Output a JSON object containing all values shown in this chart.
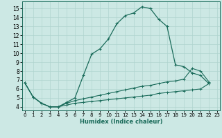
{
  "xlabel": "Humidex (Indice chaleur)",
  "background_color": "#cce8e4",
  "grid_color": "#b0d4cf",
  "line_color": "#1a6b5a",
  "xticks": [
    0,
    1,
    2,
    3,
    4,
    5,
    6,
    7,
    8,
    9,
    10,
    11,
    12,
    13,
    14,
    15,
    16,
    17,
    18,
    19,
    20,
    21,
    22,
    23
  ],
  "yticks": [
    4,
    5,
    6,
    7,
    8,
    9,
    10,
    11,
    12,
    13,
    14,
    15
  ],
  "xlim": [
    -0.3,
    23.3
  ],
  "ylim": [
    3.6,
    15.8
  ],
  "main_x": [
    0,
    1,
    2,
    3,
    4,
    5,
    6,
    7,
    8,
    9,
    10,
    11,
    12,
    13,
    14,
    15,
    16,
    17,
    18,
    19,
    20,
    21,
    22
  ],
  "main_y": [
    6.7,
    5.1,
    4.4,
    4.0,
    4.0,
    4.5,
    5.0,
    7.5,
    9.9,
    10.5,
    11.6,
    13.3,
    14.2,
    14.5,
    15.2,
    15.0,
    13.8,
    13.0,
    8.7,
    8.5,
    7.8,
    7.5,
    6.6
  ],
  "upper_x": [
    0,
    1,
    2,
    3,
    4,
    5,
    6,
    7,
    8,
    9,
    10,
    11,
    12,
    13,
    14,
    15,
    16,
    17,
    18,
    19,
    20,
    21,
    22
  ],
  "upper_y": [
    6.7,
    5.1,
    4.4,
    4.0,
    4.0,
    4.4,
    4.7,
    4.9,
    5.1,
    5.3,
    5.5,
    5.7,
    5.9,
    6.1,
    6.3,
    6.4,
    6.6,
    6.8,
    6.9,
    7.1,
    8.3,
    8.0,
    6.8
  ],
  "lower_x": [
    0,
    1,
    2,
    3,
    4,
    5,
    6,
    7,
    8,
    9,
    10,
    11,
    12,
    13,
    14,
    15,
    16,
    17,
    18,
    19,
    20,
    21,
    22
  ],
  "lower_y": [
    6.7,
    5.1,
    4.4,
    4.0,
    4.0,
    4.2,
    4.4,
    4.5,
    4.6,
    4.7,
    4.8,
    4.9,
    5.0,
    5.1,
    5.2,
    5.3,
    5.5,
    5.6,
    5.7,
    5.8,
    5.9,
    6.0,
    6.6
  ]
}
